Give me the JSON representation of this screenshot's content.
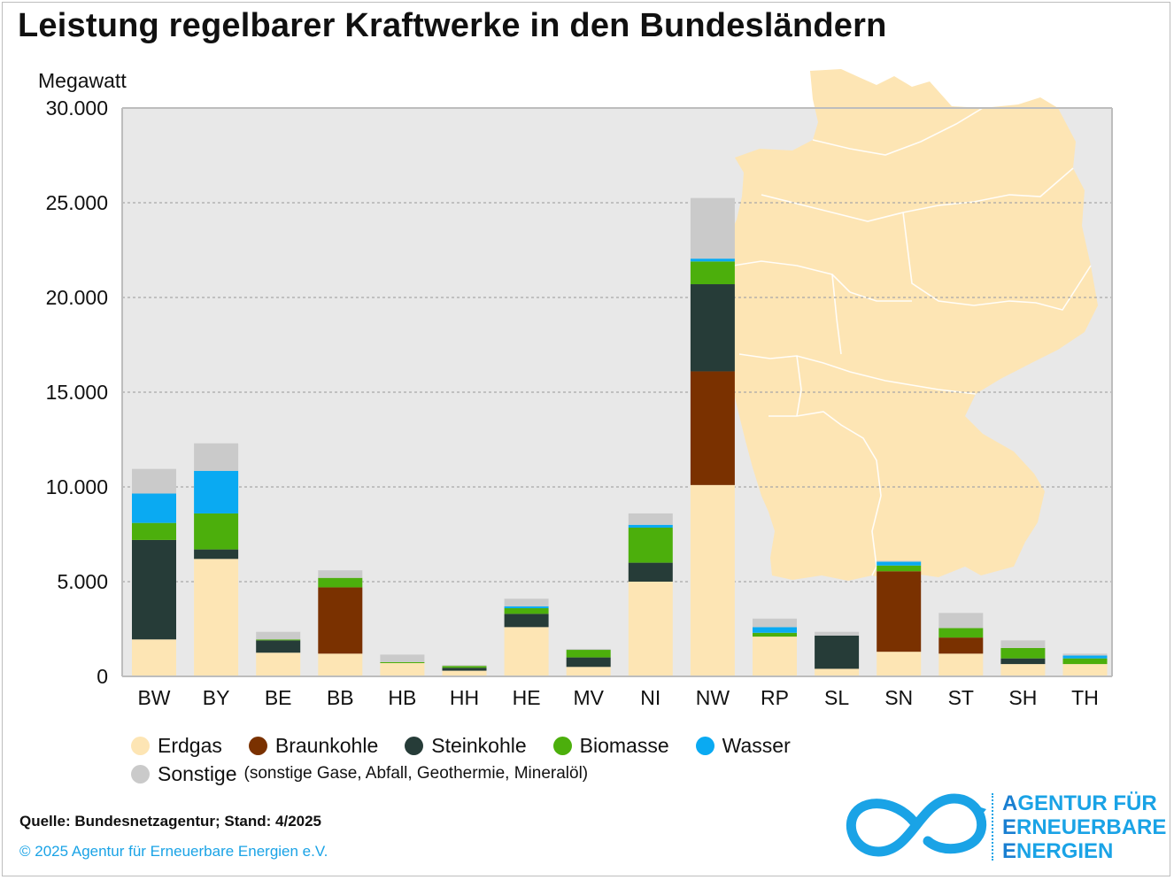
{
  "title": "Leistung regelbarer Kraftwerke in den Bundesländern",
  "unit_label": "Megawatt",
  "legend_note": "(sonstige Gase, Abfall, Geothermie, Mineralöl)",
  "source": "Quelle: Bundesnetzagentur; Stand: 4/2025",
  "copyright": "© 2025 Agentur für Erneuerbare Energien e.V.",
  "logo": {
    "line1_first": "A",
    "line1_rest": "GENTUR FÜR",
    "line2_first": "E",
    "line2_rest": "RNEUERBARE",
    "line3_first": "E",
    "line3_rest": "NERGIEN"
  },
  "colors": {
    "plot_bg": "#e8e8e8",
    "map": "#fde5b4",
    "brand": "#1aa3e6"
  },
  "chart_data": {
    "type": "bar",
    "stacked": true,
    "title": "Leistung regelbarer Kraftwerke in den Bundesländern",
    "ylabel": "Megawatt",
    "ylim": [
      0,
      30000
    ],
    "yticks": [
      0,
      5000,
      10000,
      15000,
      20000,
      25000,
      30000
    ],
    "ytick_labels": [
      "0",
      "5.000",
      "10.000",
      "15.000",
      "20.000",
      "25.000",
      "30.000"
    ],
    "grid": true,
    "legend_position": "bottom",
    "categories": [
      "BW",
      "BY",
      "BE",
      "BB",
      "HB",
      "HH",
      "HE",
      "MV",
      "NI",
      "NW",
      "RP",
      "SL",
      "SN",
      "ST",
      "SH",
      "TH"
    ],
    "series": [
      {
        "name": "Erdgas",
        "color": "#fde5b4",
        "values": [
          1950,
          6200,
          1250,
          1200,
          700,
          300,
          2600,
          500,
          5000,
          10100,
          2100,
          400,
          1300,
          1200,
          650,
          650
        ]
      },
      {
        "name": "Braunkohle",
        "color": "#7a3100",
        "values": [
          0,
          0,
          0,
          3500,
          0,
          0,
          0,
          0,
          0,
          6000,
          0,
          0,
          4250,
          850,
          0,
          0
        ]
      },
      {
        "name": "Steinkohle",
        "color": "#263c38",
        "values": [
          5250,
          500,
          650,
          0,
          0,
          150,
          700,
          500,
          1000,
          4600,
          0,
          1750,
          0,
          0,
          300,
          0
        ]
      },
      {
        "name": "Biomasse",
        "color": "#4caf0c",
        "values": [
          900,
          1900,
          50,
          500,
          50,
          100,
          300,
          400,
          1850,
          1200,
          200,
          0,
          300,
          500,
          550,
          300
        ]
      },
      {
        "name": "Wasser",
        "color": "#0aaaf2",
        "values": [
          1550,
          2250,
          0,
          0,
          0,
          0,
          100,
          0,
          150,
          150,
          300,
          0,
          200,
          0,
          0,
          150
        ]
      },
      {
        "name": "Sonstige",
        "color": "#cacaca",
        "values": [
          1300,
          1450,
          400,
          400,
          400,
          50,
          400,
          50,
          600,
          3200,
          450,
          200,
          50,
          800,
          400,
          100
        ]
      }
    ]
  }
}
